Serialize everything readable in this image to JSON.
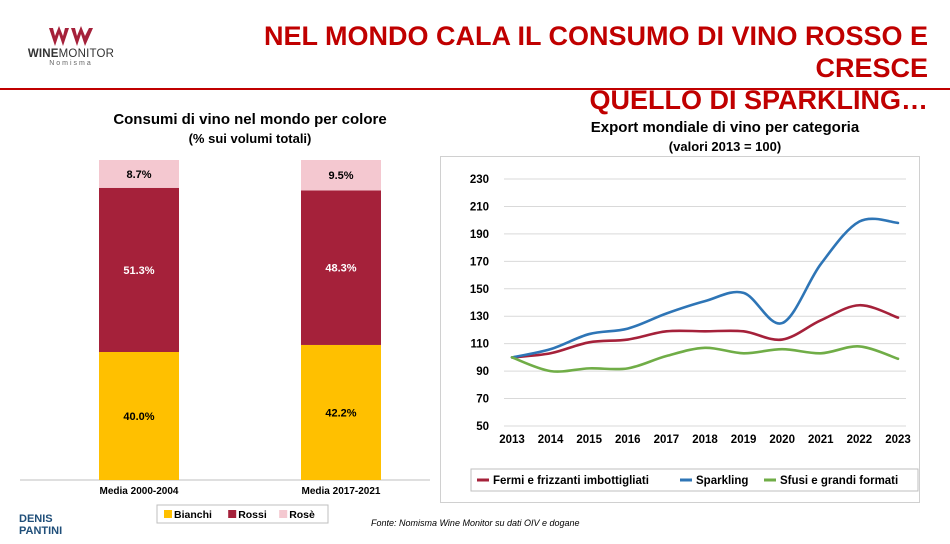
{
  "header": {
    "logo_name_bold": "WINE",
    "logo_name_rest": "MONITOR",
    "logo_sub": "Nomisma",
    "title_line1": "NEL MONDO CALA IL CONSUMO DI VINO ROSSO E CRESCE",
    "title_line2": "QUELLO DI SPARKLING…",
    "accent_color": "#c00000"
  },
  "chart_data": [
    {
      "type": "bar",
      "stacked": true,
      "title": "Consumi di vino nel mondo per colore",
      "subtitle": "(% sui volumi totali)",
      "categories": [
        "Media 2000-2004",
        "Media 2017-2021"
      ],
      "series": [
        {
          "name": "Bianchi",
          "color": "#ffc000",
          "values": [
            40.0,
            42.2
          ],
          "labels": [
            "40.0%",
            "42.2%"
          ]
        },
        {
          "name": "Rossi",
          "color": "#a5213a",
          "values": [
            51.3,
            48.3
          ],
          "labels": [
            "51.3%",
            "48.3%"
          ]
        },
        {
          "name": "Rosè",
          "color": "#f4c8d0",
          "values": [
            8.7,
            9.5
          ],
          "labels": [
            "8.7%",
            "9.5%"
          ]
        }
      ],
      "ylim": [
        0,
        100
      ],
      "legend_position": "bottom"
    },
    {
      "type": "line",
      "title": "Export mondiale  di vino per categoria",
      "subtitle": "(valori 2013 = 100)",
      "x": [
        2013,
        2014,
        2015,
        2016,
        2017,
        2018,
        2019,
        2020,
        2021,
        2022,
        2023
      ],
      "x_tick_labels": [
        "2013",
        "2014",
        "2015",
        "2016",
        "2017",
        "2018",
        "2019",
        "2020",
        "2021",
        "2022",
        "2023"
      ],
      "ylim": [
        50,
        230
      ],
      "yticks": [
        50,
        70,
        90,
        110,
        130,
        150,
        170,
        190,
        210,
        230
      ],
      "ytick_labels": [
        "50",
        "70",
        "90",
        "110",
        "130",
        "150",
        "170",
        "190",
        "210",
        "230"
      ],
      "grid": true,
      "legend_position": "bottom",
      "series": [
        {
          "name": "Fermi e frizzanti imbottigliati",
          "color": "#a5213a",
          "values": [
            100,
            103,
            111,
            113,
            119,
            119,
            119,
            113,
            127,
            138,
            129
          ]
        },
        {
          "name": "Sparkling",
          "color": "#2e75b6",
          "values": [
            100,
            106,
            117,
            121,
            132,
            141,
            147,
            125,
            168,
            199,
            198
          ]
        },
        {
          "name": "Sfusi e grandi formati",
          "color": "#70ad47",
          "values": [
            100,
            90,
            92,
            92,
            101,
            107,
            103,
            106,
            103,
            108,
            99
          ]
        }
      ]
    }
  ],
  "footer": {
    "author_line1": "DENIS",
    "author_line2": "PANTINI",
    "source": "Fonte: Nomisma Wine Monitor su dati OIV e dogane"
  }
}
